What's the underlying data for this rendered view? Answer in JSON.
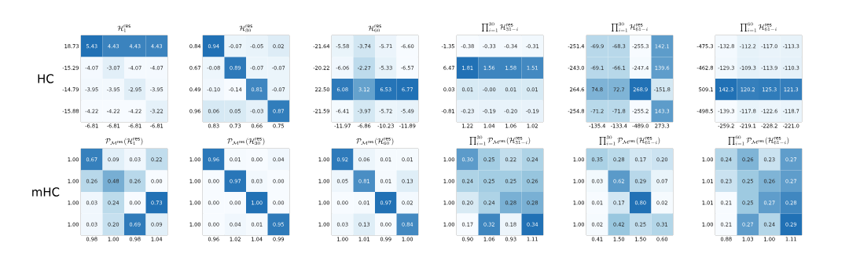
{
  "chart_data": [
    {
      "type": "heatmap",
      "title": "\\mathcal{H}_1^{\\mathrm{res}}",
      "ylabel": "HC",
      "categories": [
        "-6.81",
        "-6.81",
        "-6.81",
        "-6.81"
      ],
      "y_categories": [
        "18.73",
        "-15.29",
        "-14.79",
        "-15.88"
      ],
      "cells": [
        [
          5.43,
          4.43,
          4.43,
          4.43
        ],
        [
          -4.07,
          -3.07,
          -4.07,
          -4.07
        ],
        [
          -3.95,
          -3.95,
          -2.95,
          -3.95
        ],
        [
          -4.22,
          -4.22,
          -4.22,
          -3.22
        ]
      ],
      "cell_labels": [
        [
          "5.43",
          "4.43",
          "4.43",
          "4.43"
        ],
        [
          "-4.07",
          "-3.07",
          "-4.07",
          "-4.07"
        ],
        [
          "-3.95",
          "-3.95",
          "-2.95",
          "-3.95"
        ],
        [
          "-4.22",
          "-4.22",
          "-4.22",
          "-3.22"
        ]
      ]
    },
    {
      "type": "heatmap",
      "title": "\\mathcal{H}_{30}^{\\mathrm{res}}",
      "categories": [
        "0.83",
        "0.73",
        "0.66",
        "0.75"
      ],
      "y_categories": [
        "0.84",
        "0.67",
        "0.49",
        "0.96"
      ],
      "cells": [
        [
          0.94,
          -0.07,
          -0.05,
          0.02
        ],
        [
          -0.08,
          0.89,
          -0.07,
          -0.07
        ],
        [
          -0.1,
          -0.14,
          0.81,
          -0.07
        ],
        [
          0.06,
          0.05,
          -0.03,
          0.87
        ]
      ],
      "cell_labels": [
        [
          "0.94",
          "-0.07",
          "-0.05",
          "0.02"
        ],
        [
          "-0.08",
          "0.89",
          "-0.07",
          "-0.07"
        ],
        [
          "-0.10",
          "-0.14",
          "0.81",
          "-0.07"
        ],
        [
          "0.06",
          "0.05",
          "-0.03",
          "0.87"
        ]
      ]
    },
    {
      "type": "heatmap",
      "title": "\\mathcal{H}_{60}^{\\mathrm{res}}",
      "categories": [
        "-11.97",
        "-6.86",
        "-10.23",
        "-11.89"
      ],
      "y_categories": [
        "-21.64",
        "-20.22",
        "22.50",
        "-21.59"
      ],
      "cells": [
        [
          -5.58,
          -3.74,
          -5.71,
          -6.6
        ],
        [
          -6.06,
          -2.27,
          -5.33,
          -6.57
        ],
        [
          6.08,
          3.12,
          6.53,
          6.77
        ],
        [
          -6.41,
          -3.97,
          -5.72,
          -5.49
        ]
      ],
      "cell_labels": [
        [
          "-5.58",
          "-3.74",
          "-5.71",
          "-6.60"
        ],
        [
          "-6.06",
          "-2.27",
          "-5.33",
          "-6.57"
        ],
        [
          "6.08",
          "3.12",
          "6.53",
          "6.77"
        ],
        [
          "-6.41",
          "-3.97",
          "-5.72",
          "-5.49"
        ]
      ]
    },
    {
      "type": "heatmap",
      "title": "\\prod_{i=1}^{30}\\mathcal{H}_{31-i}^{\\mathrm{res}}",
      "categories": [
        "1.22",
        "1.04",
        "1.06",
        "1.02"
      ],
      "y_categories": [
        "-1.35",
        "6.47",
        "0.03",
        "-0.81"
      ],
      "cells": [
        [
          -0.38,
          -0.33,
          -0.34,
          -0.31
        ],
        [
          1.81,
          1.56,
          1.58,
          1.51
        ],
        [
          0.01,
          0.0,
          0.01,
          0.01
        ],
        [
          -0.23,
          -0.19,
          -0.2,
          -0.19
        ]
      ],
      "cell_labels": [
        [
          "-0.38",
          "-0.33",
          "-0.34",
          "-0.31"
        ],
        [
          "1.81",
          "1.56",
          "1.58",
          "1.51"
        ],
        [
          "0.01",
          "-0.00",
          "0.01",
          "0.01"
        ],
        [
          "-0.23",
          "-0.19",
          "-0.20",
          "-0.19"
        ]
      ]
    },
    {
      "type": "heatmap",
      "title": "\\prod_{i=1}^{30}\\mathcal{H}_{61-i}^{\\mathrm{res}}",
      "categories": [
        "-135.4",
        "-133.4",
        "-489.0",
        "273.3"
      ],
      "y_categories": [
        "-251.4",
        "-243.0",
        "264.6",
        "-254.8"
      ],
      "cells": [
        [
          -69.9,
          -68.3,
          -255.3,
          142.1
        ],
        [
          -69.1,
          -66.1,
          -247.4,
          139.6
        ],
        [
          74.8,
          72.7,
          268.9,
          -151.8
        ],
        [
          -71.2,
          -71.8,
          -255.2,
          143.3
        ]
      ],
      "cell_labels": [
        [
          "-69.9",
          "-68.3",
          "-255.3",
          "142.1"
        ],
        [
          "-69.1",
          "-66.1",
          "-247.4",
          "139.6"
        ],
        [
          "74.8",
          "72.7",
          "268.9",
          "-151.8"
        ],
        [
          "-71.2",
          "-71.8",
          "-255.2",
          "143.3"
        ]
      ]
    },
    {
      "type": "heatmap",
      "title": "\\prod_{i=1}^{60}\\mathcal{H}_{61-i}^{\\mathrm{res}}",
      "categories": [
        "-259.2",
        "-219.1",
        "-228.2",
        "-221.0"
      ],
      "y_categories": [
        "-475.3",
        "-462.8",
        "509.1",
        "-498.5"
      ],
      "cells": [
        [
          -132.8,
          -112.2,
          -117.0,
          -113.3
        ],
        [
          -129.3,
          -109.3,
          -113.9,
          -110.3
        ],
        [
          142.3,
          120.2,
          125.3,
          121.3
        ],
        [
          -139.3,
          -117.8,
          -122.6,
          -118.7
        ]
      ],
      "cell_labels": [
        [
          "-132.8",
          "-112.2",
          "-117.0",
          "-113.3"
        ],
        [
          "-129.3",
          "-109.3",
          "-113.9",
          "-110.3"
        ],
        [
          "142.3",
          "120.2",
          "125.3",
          "121.3"
        ],
        [
          "-139.3",
          "-117.8",
          "-122.6",
          "-118.7"
        ]
      ]
    },
    {
      "type": "heatmap",
      "title": "\\mathcal{P}_{\\mathcal{M}^{\\mathrm{res}}}(\\mathcal{H}_1^{\\mathrm{res}})",
      "ylabel": "mHC",
      "categories": [
        "0.98",
        "1.00",
        "0.98",
        "1.04"
      ],
      "y_categories": [
        "1.00",
        "1.00",
        "1.00",
        "1.00"
      ],
      "cells": [
        [
          0.67,
          0.09,
          0.03,
          0.22
        ],
        [
          0.26,
          0.48,
          0.26,
          0.0
        ],
        [
          0.03,
          0.24,
          0.0,
          0.73
        ],
        [
          0.03,
          0.2,
          0.69,
          0.09
        ]
      ],
      "cell_labels": [
        [
          "0.67",
          "0.09",
          "0.03",
          "0.22"
        ],
        [
          "0.26",
          "0.48",
          "0.26",
          "0.00"
        ],
        [
          "0.03",
          "0.24",
          "0.00",
          "0.73"
        ],
        [
          "0.03",
          "0.20",
          "0.69",
          "0.09"
        ]
      ]
    },
    {
      "type": "heatmap",
      "title": "\\mathcal{P}_{\\mathcal{M}^{\\mathrm{res}}}(\\mathcal{H}_{30}^{\\mathrm{res}})",
      "categories": [
        "0.96",
        "1.02",
        "1.04",
        "0.99"
      ],
      "y_categories": [
        "1.00",
        "1.00",
        "1.00",
        "1.00"
      ],
      "cells": [
        [
          0.96,
          0.01,
          0.0,
          0.04
        ],
        [
          0.0,
          0.97,
          0.03,
          0.0
        ],
        [
          0.0,
          0.0,
          1.0,
          0.0
        ],
        [
          0.0,
          0.04,
          0.01,
          0.95
        ]
      ],
      "cell_labels": [
        [
          "0.96",
          "0.01",
          "0.00",
          "0.04"
        ],
        [
          "0.00",
          "0.97",
          "0.03",
          "0.00"
        ],
        [
          "0.00",
          "0.00",
          "1.00",
          "0.00"
        ],
        [
          "0.00",
          "0.04",
          "0.01",
          "0.95"
        ]
      ]
    },
    {
      "type": "heatmap",
      "title": "\\mathcal{P}_{\\mathcal{M}^{\\mathrm{res}}}(\\mathcal{H}_{60}^{\\mathrm{res}})",
      "categories": [
        "1.00",
        "1.01",
        "0.99",
        "1.00"
      ],
      "y_categories": [
        "1.00",
        "1.00",
        "1.00",
        "1.00"
      ],
      "cells": [
        [
          0.92,
          0.06,
          0.01,
          0.01
        ],
        [
          0.05,
          0.81,
          0.01,
          0.13
        ],
        [
          0.0,
          0.01,
          0.97,
          0.02
        ],
        [
          0.03,
          0.13,
          0.0,
          0.84
        ]
      ],
      "cell_labels": [
        [
          "0.92",
          "0.06",
          "0.01",
          "0.01"
        ],
        [
          "0.05",
          "0.81",
          "0.01",
          "0.13"
        ],
        [
          "0.00",
          "0.01",
          "0.97",
          "0.02"
        ],
        [
          "0.03",
          "0.13",
          "0.00",
          "0.84"
        ]
      ]
    },
    {
      "type": "heatmap",
      "title": "\\prod_{i=1}^{30}\\mathcal{P}_{\\mathcal{M}^{\\mathrm{res}}}(\\mathcal{H}_{31-i}^{\\mathrm{res}})",
      "categories": [
        "0.90",
        "1.06",
        "0.93",
        "1.11"
      ],
      "y_categories": [
        "1.00",
        "1.00",
        "1.00",
        "1.00"
      ],
      "cells": [
        [
          0.3,
          0.25,
          0.22,
          0.24
        ],
        [
          0.24,
          0.25,
          0.25,
          0.26
        ],
        [
          0.2,
          0.24,
          0.28,
          0.28
        ],
        [
          0.17,
          0.32,
          0.18,
          0.34
        ]
      ],
      "cell_labels": [
        [
          "0.30",
          "0.25",
          "0.22",
          "0.24"
        ],
        [
          "0.24",
          "0.25",
          "0.25",
          "0.26"
        ],
        [
          "0.20",
          "0.24",
          "0.28",
          "0.28"
        ],
        [
          "0.17",
          "0.32",
          "0.18",
          "0.34"
        ]
      ]
    },
    {
      "type": "heatmap",
      "title": "\\prod_{i=1}^{30}\\mathcal{P}_{\\mathcal{M}^{\\mathrm{res}}}(\\mathcal{H}_{61-i}^{\\mathrm{res}})",
      "categories": [
        "0.41",
        "1.50",
        "1.50",
        "0.60"
      ],
      "y_categories": [
        "1.00",
        "1.00",
        "1.00",
        "1.00"
      ],
      "cells": [
        [
          0.35,
          0.28,
          0.17,
          0.2
        ],
        [
          0.03,
          0.62,
          0.29,
          0.07
        ],
        [
          0.01,
          0.17,
          0.8,
          0.02
        ],
        [
          0.02,
          0.42,
          0.25,
          0.31
        ]
      ],
      "cell_labels": [
        [
          "0.35",
          "0.28",
          "0.17",
          "0.20"
        ],
        [
          "0.03",
          "0.62",
          "0.29",
          "0.07"
        ],
        [
          "0.01",
          "0.17",
          "0.80",
          "0.02"
        ],
        [
          "0.02",
          "0.42",
          "0.25",
          "0.31"
        ]
      ]
    },
    {
      "type": "heatmap",
      "title": "\\prod_{i=1}^{60}\\mathcal{P}_{\\mathcal{M}^{\\mathrm{res}}}(\\mathcal{H}_{61-i}^{\\mathrm{res}})",
      "categories": [
        "0.88",
        "1.03",
        "1.00",
        "1.11"
      ],
      "y_categories": [
        "1.00",
        "1.01",
        "1.01",
        "1.00"
      ],
      "cells": [
        [
          0.24,
          0.26,
          0.23,
          0.27
        ],
        [
          0.23,
          0.25,
          0.26,
          0.27
        ],
        [
          0.21,
          0.25,
          0.27,
          0.28
        ],
        [
          0.21,
          0.27,
          0.24,
          0.29
        ]
      ],
      "cell_labels": [
        [
          "0.24",
          "0.26",
          "0.23",
          "0.27"
        ],
        [
          "0.23",
          "0.25",
          "0.26",
          "0.27"
        ],
        [
          "0.21",
          "0.25",
          "0.27",
          "0.28"
        ],
        [
          "0.21",
          "0.27",
          "0.24",
          "0.29"
        ]
      ]
    }
  ]
}
